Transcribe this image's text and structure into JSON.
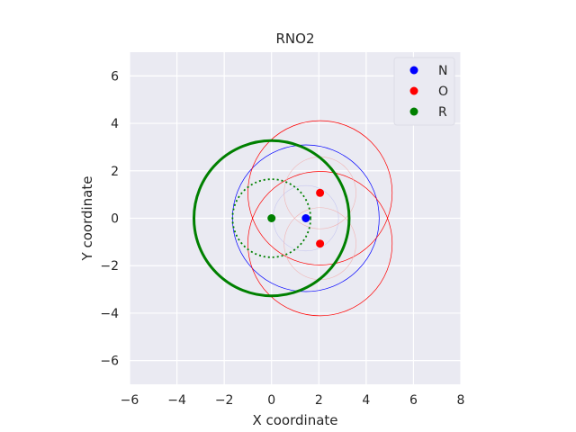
{
  "chart_data": {
    "type": "scatter",
    "title": "RNO2",
    "xlabel": "X coordinate",
    "ylabel": "Y coordinate",
    "xlim": [
      -6,
      8
    ],
    "ylim": [
      -7,
      7
    ],
    "xticks": [
      -6,
      -4,
      -2,
      0,
      2,
      4,
      6,
      8
    ],
    "yticks": [
      -6,
      -4,
      -2,
      0,
      2,
      4,
      6
    ],
    "tick_labels_x": [
      "−6",
      "−4",
      "−2",
      "0",
      "2",
      "4",
      "6",
      "8"
    ],
    "tick_labels_y": [
      "−6",
      "−4",
      "−2",
      "0",
      "2",
      "4",
      "6"
    ],
    "grid": true,
    "background": "#eaeaf2",
    "legend_position": "top-right",
    "series": [
      {
        "name": "N",
        "color": "#0000ff",
        "points": [
          {
            "x": 1.45,
            "y": 0.0
          }
        ]
      },
      {
        "name": "O",
        "color": "#ff0000",
        "points": [
          {
            "x": 2.05,
            "y": 1.07
          },
          {
            "x": 2.05,
            "y": -1.07
          }
        ]
      },
      {
        "name": "R",
        "color": "#008000",
        "points": [
          {
            "x": 0.0,
            "y": 0.0
          }
        ]
      }
    ],
    "circles": [
      {
        "cx": 1.45,
        "cy": 0.0,
        "r": 3.1,
        "color": "#0000ff",
        "style": "solid",
        "weight": "thin"
      },
      {
        "cx": 1.45,
        "cy": 0.0,
        "r": 1.38,
        "color": "#c8c8f0",
        "style": "solid",
        "weight": "faint"
      },
      {
        "cx": 2.05,
        "cy": 1.07,
        "r": 3.05,
        "color": "#ff0000",
        "style": "solid",
        "weight": "thin"
      },
      {
        "cx": 2.05,
        "cy": -1.07,
        "r": 3.05,
        "color": "#ff0000",
        "style": "solid",
        "weight": "thin"
      },
      {
        "cx": 2.05,
        "cy": 1.07,
        "r": 1.52,
        "color": "#f0b4b4",
        "style": "solid",
        "weight": "faint"
      },
      {
        "cx": 2.05,
        "cy": -1.07,
        "r": 1.52,
        "color": "#f0b4b4",
        "style": "solid",
        "weight": "faint"
      },
      {
        "cx": 0.0,
        "cy": 0.0,
        "r": 3.28,
        "color": "#008000",
        "style": "solid",
        "weight": "thick"
      },
      {
        "cx": 0.0,
        "cy": 0.0,
        "r": 1.65,
        "color": "#008000",
        "style": "dotted",
        "weight": "medium"
      }
    ]
  }
}
